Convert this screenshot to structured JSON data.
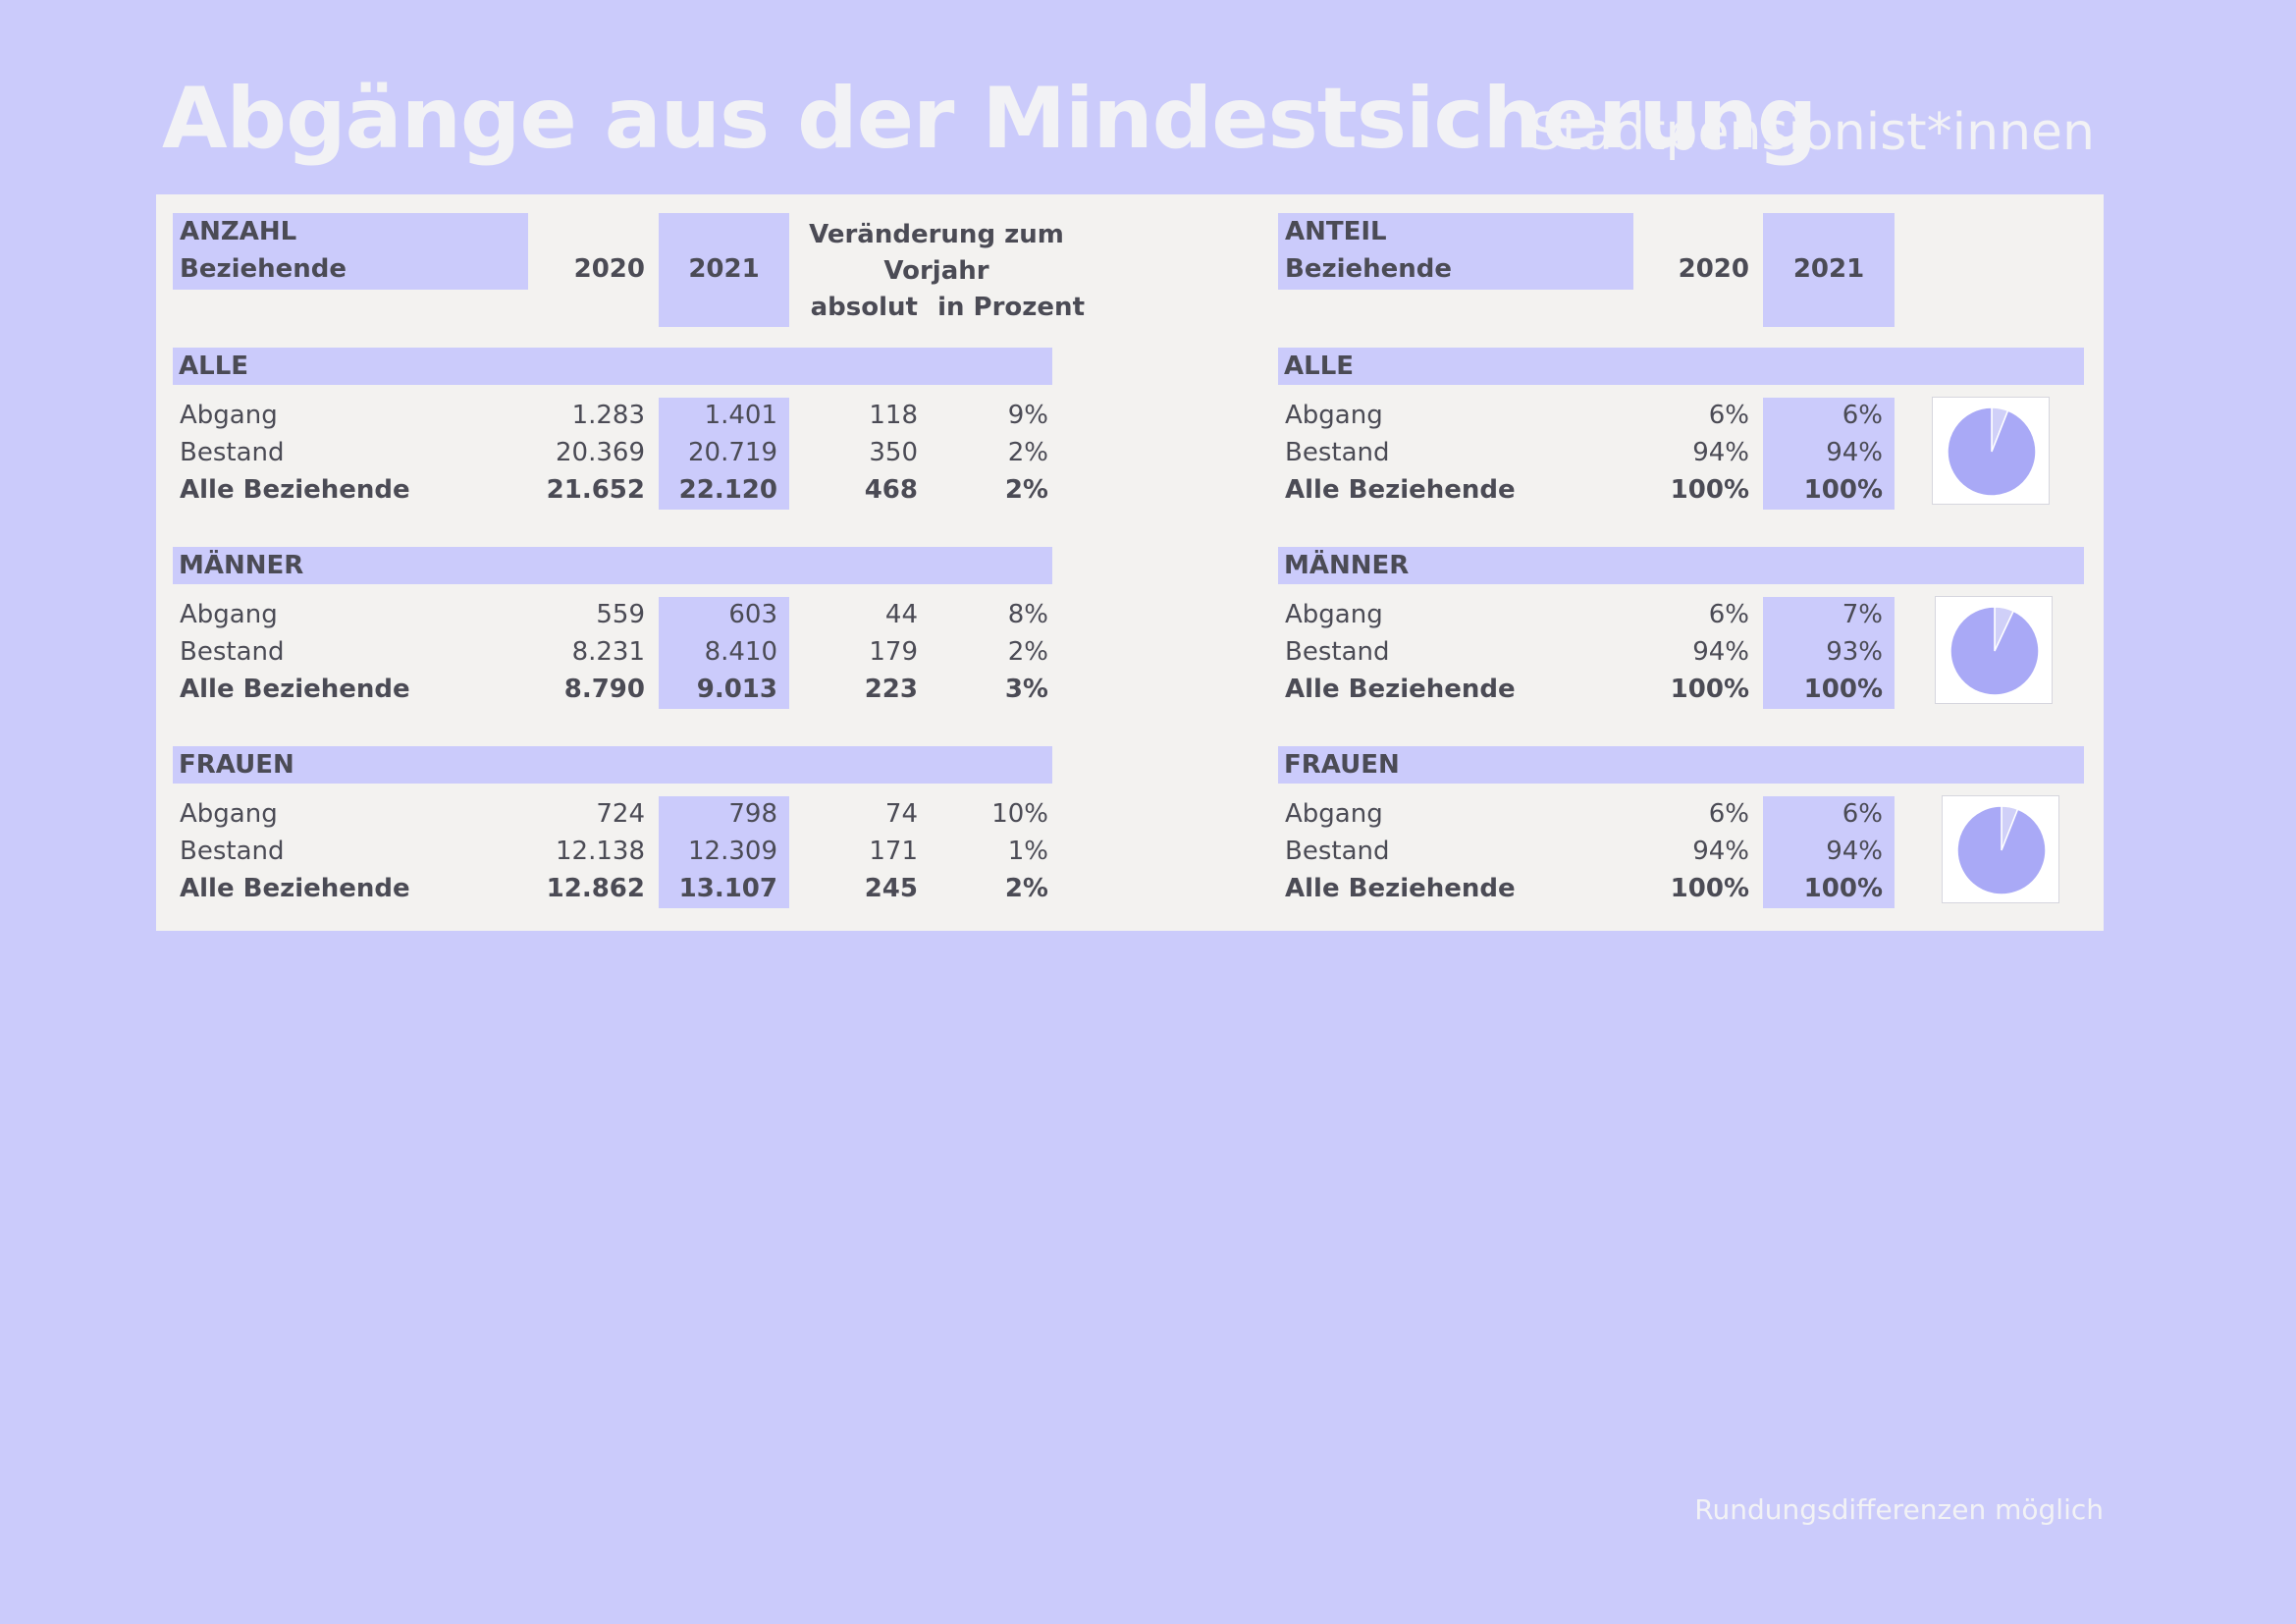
{
  "title": "Abgänge aus der Mindestsicherung",
  "subtitle": "Stadtpensionist*innen",
  "footnote": "Rundungsdifferenzen möglich",
  "left": {
    "header": {
      "label_line1": "ANZAHL",
      "label_line2": "Beziehende",
      "col_2020": "2020",
      "col_2021": "2021",
      "change_line1": "Veränderung zum",
      "change_line2": "Vorjahr",
      "col_abs": "absolut",
      "col_pct": "in Prozent"
    },
    "sections": [
      {
        "title": "ALLE",
        "rows": [
          {
            "label": "Abgang",
            "v2020": "1.283",
            "v2021": "1.401",
            "abs": "118",
            "pct": "9%"
          },
          {
            "label": "Bestand",
            "v2020": "20.369",
            "v2021": "20.719",
            "abs": "350",
            "pct": "2%"
          },
          {
            "label": "Alle Beziehende",
            "v2020": "21.652",
            "v2021": "22.120",
            "abs": "468",
            "pct": "2%"
          }
        ]
      },
      {
        "title": "MÄNNER",
        "rows": [
          {
            "label": "Abgang",
            "v2020": "559",
            "v2021": "603",
            "abs": "44",
            "pct": "8%"
          },
          {
            "label": "Bestand",
            "v2020": "8.231",
            "v2021": "8.410",
            "abs": "179",
            "pct": "2%"
          },
          {
            "label": "Alle Beziehende",
            "v2020": "8.790",
            "v2021": "9.013",
            "abs": "223",
            "pct": "3%"
          }
        ]
      },
      {
        "title": "FRAUEN",
        "rows": [
          {
            "label": "Abgang",
            "v2020": "724",
            "v2021": "798",
            "abs": "74",
            "pct": "10%"
          },
          {
            "label": "Bestand",
            "v2020": "12.138",
            "v2021": "12.309",
            "abs": "171",
            "pct": "1%"
          },
          {
            "label": "Alle Beziehende",
            "v2020": "12.862",
            "v2021": "13.107",
            "abs": "245",
            "pct": "2%"
          }
        ]
      }
    ]
  },
  "right": {
    "header": {
      "label_line1": "ANTEIL",
      "label_line2": "Beziehende",
      "col_2020": "2020",
      "col_2021": "2021"
    },
    "sections": [
      {
        "title": "ALLE",
        "rows": [
          {
            "label": "Abgang",
            "v2020": "6%",
            "v2021": "6%"
          },
          {
            "label": "Bestand",
            "v2020": "94%",
            "v2021": "94%"
          },
          {
            "label": "Alle Beziehende",
            "v2020": "100%",
            "v2021": "100%"
          }
        ]
      },
      {
        "title": "MÄNNER",
        "rows": [
          {
            "label": "Abgang",
            "v2020": "6%",
            "v2021": "7%"
          },
          {
            "label": "Bestand",
            "v2020": "94%",
            "v2021": "93%"
          },
          {
            "label": "Alle Beziehende",
            "v2020": "100%",
            "v2021": "100%"
          }
        ]
      },
      {
        "title": "FRAUEN",
        "rows": [
          {
            "label": "Abgang",
            "v2020": "6%",
            "v2021": "6%"
          },
          {
            "label": "Bestand",
            "v2020": "94%",
            "v2021": "94%"
          },
          {
            "label": "Alle Beziehende",
            "v2020": "100%",
            "v2021": "100%"
          }
        ]
      }
    ]
  },
  "chart_data": [
    {
      "type": "pie",
      "categories": [
        "Abgang",
        "Bestand"
      ],
      "values": [
        6,
        94
      ]
    },
    {
      "type": "pie",
      "categories": [
        "Abgang",
        "Bestand"
      ],
      "values": [
        7,
        93
      ]
    },
    {
      "type": "pie",
      "categories": [
        "Abgang",
        "Bestand"
      ],
      "values": [
        6,
        94
      ]
    }
  ],
  "colors": {
    "background": "#cbcbfb",
    "panel": "#f3f2f0",
    "highlight": "#cbcbfb",
    "text": "#4b4b55",
    "title": "#f2f2f5",
    "pie_main": "#a9a9f6",
    "pie_slice": "#d0d0f8"
  }
}
